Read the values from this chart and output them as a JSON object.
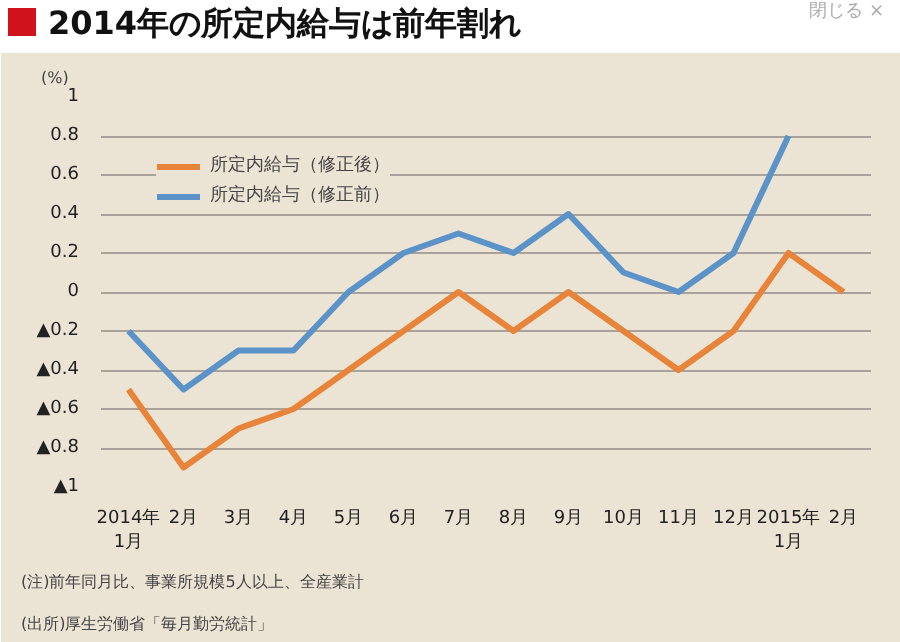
{
  "chart_data": {
    "type": "line",
    "title": "2014年の所定内給与は前年割れ",
    "ylabel": "(%)",
    "categories": [
      "2014年\n1月",
      "2月",
      "3月",
      "4月",
      "5月",
      "6月",
      "7月",
      "8月",
      "9月",
      "10月",
      "11月",
      "12月",
      "2015年\n1月",
      "2月"
    ],
    "series": [
      {
        "name": "所定内給与（修正後）",
        "color": "#e8833a",
        "values": [
          -0.5,
          -0.9,
          -0.7,
          -0.6,
          -0.4,
          -0.2,
          0,
          -0.2,
          0,
          -0.2,
          -0.4,
          -0.2,
          0.2,
          0
        ]
      },
      {
        "name": "所定内給与（修正前）",
        "color": "#5b93c8",
        "values": [
          -0.2,
          -0.5,
          -0.3,
          -0.3,
          0,
          0.2,
          0.3,
          0.2,
          0.4,
          0.1,
          0,
          0.2,
          0.8,
          null
        ]
      }
    ],
    "ylim": [
      -1,
      1
    ],
    "yticks": [
      {
        "value": -1,
        "label": "▲1"
      },
      {
        "value": -0.8,
        "label": "▲0.8"
      },
      {
        "value": -0.6,
        "label": "▲0.6"
      },
      {
        "value": -0.4,
        "label": "▲0.4"
      },
      {
        "value": -0.2,
        "label": "▲0.2"
      },
      0,
      0.2,
      0.4,
      0.6,
      0.8,
      1
    ],
    "grid": "y",
    "legend": "top left",
    "marker": "none",
    "line_style": "solid",
    "annotations": [
      "閉じる ×",
      "(注)前年同月比、事業所規模5人以上、全産業計",
      "(出所)厚生労働省「毎月勤労統計」"
    ]
  }
}
